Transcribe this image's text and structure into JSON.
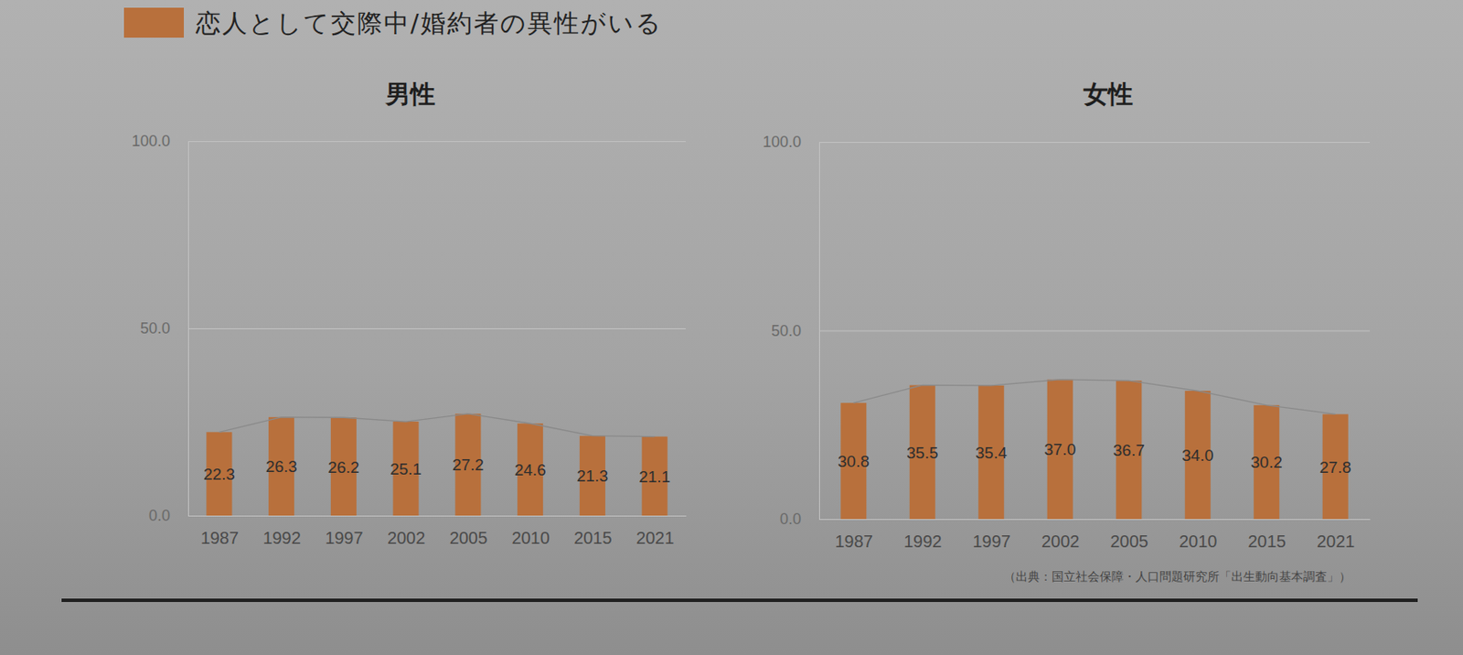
{
  "chart_data": [
    {
      "type": "bar",
      "title": "男性",
      "categories": [
        "1987",
        "1992",
        "1997",
        "2002",
        "2005",
        "2010",
        "2015",
        "2021"
      ],
      "series": [
        {
          "name": "恋人として交際中/婚約者の異性がいる",
          "color": "#b8703c",
          "line_style": "solid",
          "values": [
            22.3,
            26.3,
            26.2,
            25.1,
            27.2,
            24.6,
            21.3,
            21.1
          ],
          "value_labels": [
            "22.3",
            "26.3",
            "26.2",
            "25.1",
            "27.2",
            "24.6",
            "21.3",
            "21.1"
          ]
        }
      ],
      "ylim": [
        0,
        100
      ],
      "yticks": [
        {
          "value": 0,
          "label": "0.0"
        },
        {
          "value": 50,
          "label": "50.0"
        },
        {
          "value": 100,
          "label": "100.0"
        }
      ],
      "grid": true,
      "data_labels": true,
      "legend": "top-left"
    },
    {
      "type": "bar",
      "title": "女性",
      "categories": [
        "1987",
        "1992",
        "1997",
        "2002",
        "2005",
        "2010",
        "2015",
        "2021"
      ],
      "series": [
        {
          "color": "#b8703c",
          "line_style": "solid",
          "values": [
            30.8,
            35.5,
            35.4,
            37.0,
            36.7,
            34.0,
            30.2,
            27.8
          ],
          "value_labels": [
            "30.8",
            "35.5",
            "35.4",
            "37.0",
            "36.7",
            "34.0",
            "30.2",
            "27.8"
          ]
        }
      ],
      "ylim": [
        0,
        100
      ],
      "yticks": [
        {
          "value": 0,
          "label": "0.0"
        },
        {
          "value": 50,
          "label": "50.0"
        },
        {
          "value": 100,
          "label": "100.0"
        }
      ],
      "grid": true,
      "data_labels": true,
      "annotation": "（出典：国立社会保障・人口問題研究所「出生動向基本調査」）"
    }
  ]
}
